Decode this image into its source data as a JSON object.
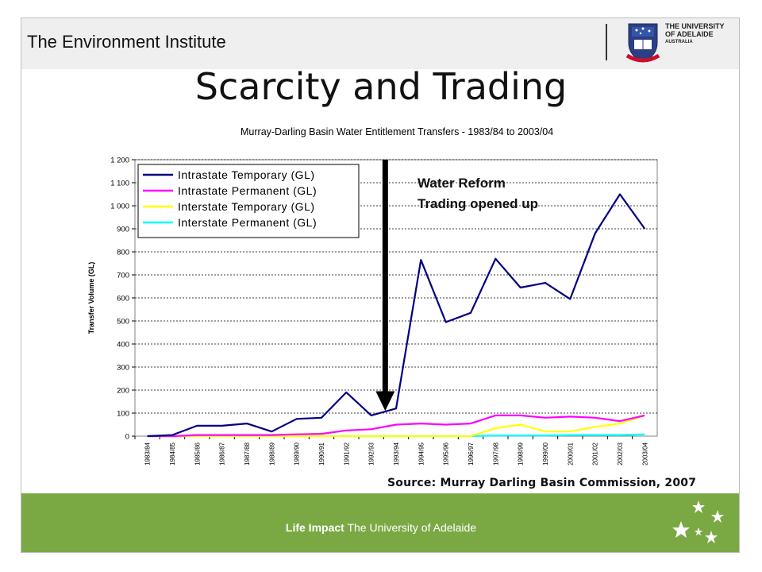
{
  "header": {
    "institute": "The Environment Institute",
    "university_line1": "THE UNIVERSITY",
    "university_line2": "OF ADELAIDE",
    "university_line3": "AUSTRALIA"
  },
  "slide": {
    "title": "Scarcity and Trading"
  },
  "annotation": {
    "line1": "Water Reform",
    "line2": "Trading opened up"
  },
  "source": "Source: Murray Darling Basin Commission, 2007",
  "footer": {
    "bold": "Life Impact",
    "text": "The University of Adelaide"
  },
  "colors": {
    "footer_green": "#7aa944",
    "header_grey": "#efefef",
    "intrastate_temporary": "#000080",
    "intrastate_permanent": "#ff00ff",
    "interstate_temporary": "#ffff00",
    "interstate_permanent": "#00ffff"
  },
  "chart_data": {
    "type": "line",
    "title": "Murray-Darling Basin Water Entitlement Transfers - 1983/84 to 2003/04",
    "ylabel": "Transfer Volume (GL)",
    "xlabel": "",
    "ylim": [
      0,
      1200
    ],
    "yticks": [
      0,
      100,
      200,
      300,
      400,
      500,
      600,
      700,
      800,
      900,
      1000,
      1100,
      1200
    ],
    "ytick_labels": [
      "0",
      "100",
      "200",
      "300",
      "400",
      "500",
      "600",
      "700",
      "800",
      "900",
      "1 000",
      "1 100",
      "1 200"
    ],
    "grid": true,
    "legend_position": "top-left",
    "categories": [
      "1983/84",
      "1984/85",
      "1985/86",
      "1986/87",
      "1987/88",
      "1988/89",
      "1989/90",
      "1990/91",
      "1991/92",
      "1992/93",
      "1993/94",
      "1994/95",
      "1995/96",
      "1996/97",
      "1997/98",
      "1998/99",
      "1999/00",
      "2000/01",
      "2001/02",
      "2002/03",
      "2003/04"
    ],
    "series": [
      {
        "name": "Intrastate Temporary (GL)",
        "color": "#000080",
        "values": [
          0,
          5,
          45,
          45,
          55,
          20,
          75,
          80,
          190,
          90,
          120,
          765,
          495,
          535,
          770,
          645,
          665,
          595,
          880,
          1050,
          900
        ]
      },
      {
        "name": "Intrastate Permanent (GL)",
        "color": "#ff00ff",
        "values": [
          0,
          0,
          5,
          5,
          5,
          5,
          8,
          10,
          25,
          30,
          50,
          55,
          50,
          55,
          90,
          90,
          80,
          85,
          80,
          65,
          90
        ]
      },
      {
        "name": "Interstate Temporary (GL)",
        "color": "#ffff00",
        "values": [
          0,
          0,
          0,
          0,
          0,
          0,
          0,
          0,
          0,
          0,
          0,
          0,
          0,
          0,
          35,
          50,
          20,
          20,
          40,
          55,
          90
        ]
      },
      {
        "name": "Interstate Permanent (GL)",
        "color": "#00ffff",
        "values": [
          0,
          0,
          0,
          0,
          0,
          0,
          0,
          0,
          0,
          0,
          0,
          0,
          0,
          0,
          3,
          3,
          3,
          5,
          5,
          5,
          8
        ]
      }
    ]
  }
}
